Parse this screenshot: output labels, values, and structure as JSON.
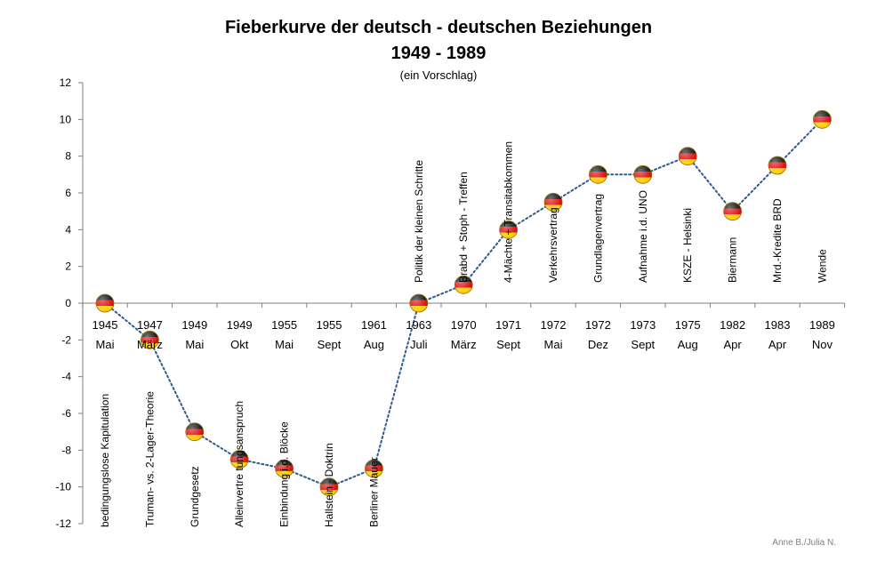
{
  "chart_data": {
    "type": "line",
    "title_line1": "Fieberkurve der deutsch - deutschen Beziehungen",
    "title_line2": "1949 - 1989",
    "subtitle": "(ein Vorschlag)",
    "credit": "Anne B./Julia N.",
    "ylim": [
      -12,
      12
    ],
    "yticks": [
      -12,
      -10,
      -8,
      -6,
      -4,
      -2,
      0,
      2,
      4,
      6,
      8,
      10,
      12
    ],
    "grid": false,
    "line_color": "#2e5a8c",
    "marker_colors": [
      "#000000",
      "#dd0000",
      "#ffcc00"
    ],
    "points": [
      {
        "year": "1945",
        "month": "Mai",
        "value": 0,
        "label": "bedingungslose Kapitulation"
      },
      {
        "year": "1947",
        "month": "März",
        "value": -2,
        "label": "Truman- vs. 2-Lager-Theorie"
      },
      {
        "year": "1949",
        "month": "Mai",
        "value": -7,
        "label": "Grundgesetz"
      },
      {
        "year": "1949",
        "month": "Okt",
        "value": -8.5,
        "label": "Alleinvertre tungsanspruch"
      },
      {
        "year": "1955",
        "month": "Mai",
        "value": -9,
        "label": "Einbindung i.d. Blöcke"
      },
      {
        "year": "1955",
        "month": "Sept",
        "value": -10,
        "label": "Hallstein - Doktrin"
      },
      {
        "year": "1961",
        "month": "Aug",
        "value": -9,
        "label": "Berliner Mauer"
      },
      {
        "year": "1963",
        "month": "Juli",
        "value": 0,
        "label": "Politik der kleinen Schritte"
      },
      {
        "year": "1970",
        "month": "März",
        "value": 1,
        "label": "Brabd + Stoph - Treffen"
      },
      {
        "year": "1971",
        "month": "Sept",
        "value": 4,
        "label": "4-Mächte + Transitabkommen"
      },
      {
        "year": "1972",
        "month": "Mai",
        "value": 5.5,
        "label": "Verkehrsvertrag"
      },
      {
        "year": "1972",
        "month": "Dez",
        "value": 7,
        "label": "Grundlagenvertrag"
      },
      {
        "year": "1973",
        "month": "Sept",
        "value": 7,
        "label": "Aufnahme i.d. UNO"
      },
      {
        "year": "1975",
        "month": "Aug",
        "value": 8,
        "label": "KSZE - Helsinki"
      },
      {
        "year": "1982",
        "month": "Apr",
        "value": 5,
        "label": "Biermann"
      },
      {
        "year": "1983",
        "month": "Apr",
        "value": 7.5,
        "label": "Mrd.-Kredite BRD"
      },
      {
        "year": "1989",
        "month": "Nov",
        "value": 10,
        "label": "Wende"
      }
    ]
  }
}
